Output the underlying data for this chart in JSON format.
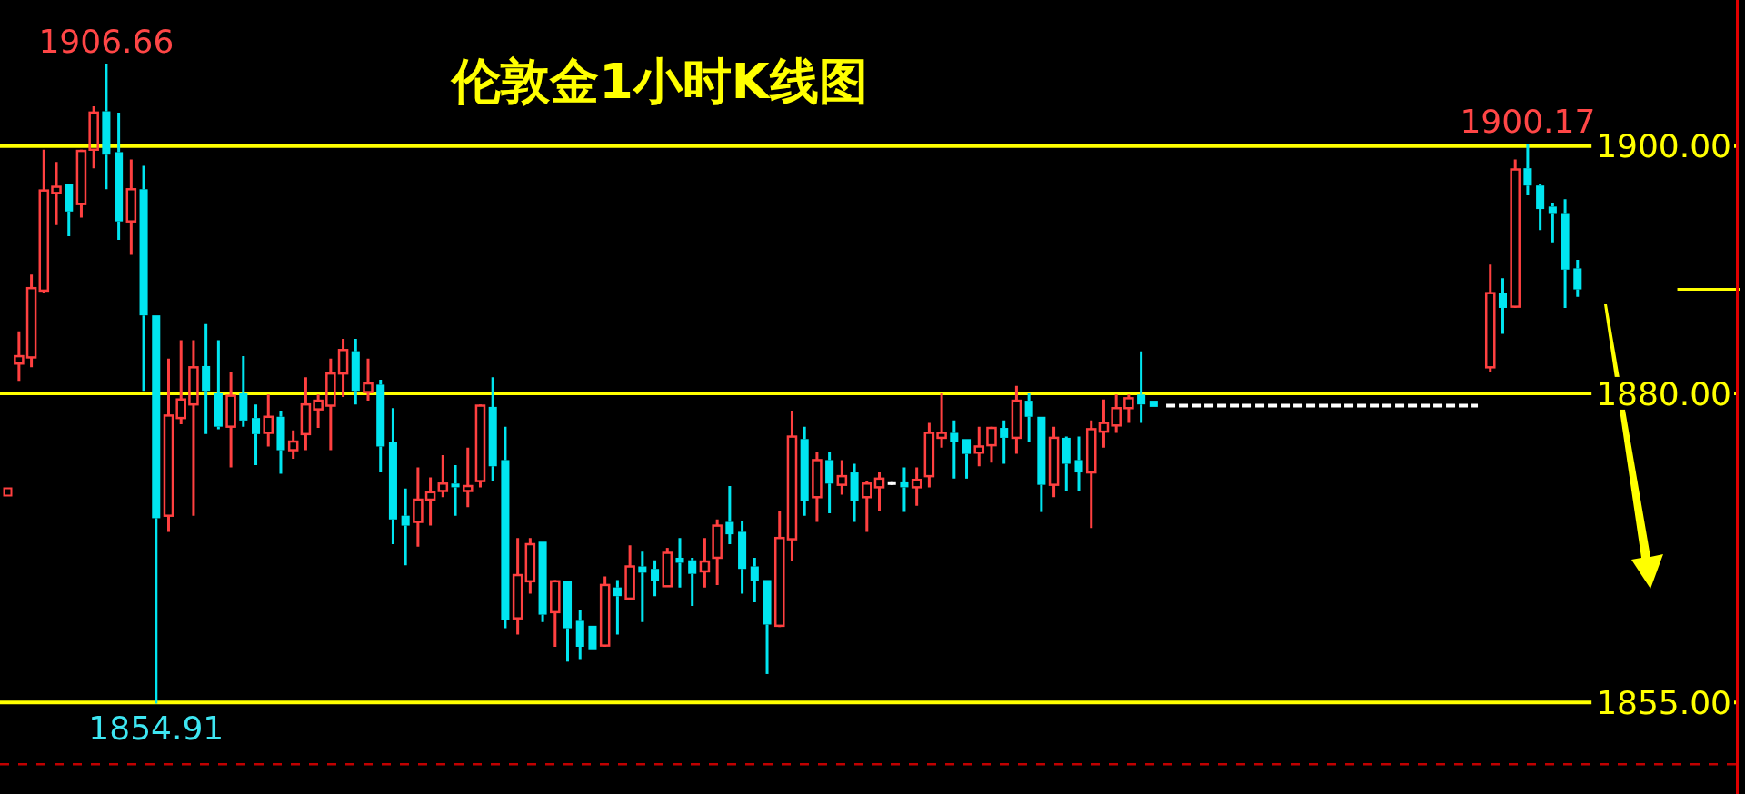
{
  "chart_data": {
    "type": "candlestick",
    "title": "伦敦金1小时K线图",
    "categories": [
      null,
      null,
      null,
      null,
      null,
      null,
      null,
      null,
      null,
      null,
      null,
      null,
      null,
      null,
      null,
      null,
      null,
      null,
      null,
      null,
      null,
      null,
      null,
      null,
      null,
      null,
      null,
      null,
      null,
      null,
      null,
      null,
      null,
      null,
      null,
      null,
      null,
      null,
      null,
      null,
      null,
      null,
      null,
      null,
      null,
      null,
      null,
      null,
      null,
      null,
      null,
      null,
      null,
      null,
      null,
      null,
      null,
      null,
      null,
      null,
      null,
      null,
      null,
      null,
      null,
      null,
      null,
      null,
      null,
      null,
      null,
      null,
      null,
      null,
      null,
      null,
      null,
      null,
      null,
      null,
      null,
      null,
      null,
      null,
      null,
      null,
      null,
      null,
      null,
      null,
      null,
      null,
      null,
      null,
      null,
      null,
      null,
      null,
      null,
      null,
      null,
      null,
      null,
      null,
      null,
      null,
      null,
      null,
      null,
      null,
      null,
      null,
      null,
      null,
      null,
      null,
      null,
      null,
      null,
      null,
      null,
      null,
      null,
      null,
      null,
      null,
      null,
      null,
      null,
      null,
      null,
      null,
      null,
      null,
      null,
      null,
      null,
      null,
      null
    ],
    "ohlc": [
      [
        1882.4,
        1885.0,
        1881.0,
        1883.0
      ],
      [
        1882.9,
        1889.6,
        1882.1,
        1888.5
      ],
      [
        1888.3,
        1899.7,
        1888.1,
        1896.4
      ],
      [
        1896.2,
        1898.7,
        1893.6,
        1896.7
      ],
      [
        1896.9,
        1896.9,
        1892.7,
        1894.7
      ],
      [
        1895.3,
        1899.7,
        1894.2,
        1899.6
      ],
      [
        1899.7,
        1903.2,
        1898.2,
        1902.7
      ],
      [
        1902.8,
        1906.66,
        1896.5,
        1899.3
      ],
      [
        1899.5,
        1902.7,
        1892.4,
        1893.9
      ],
      [
        1893.9,
        1898.9,
        1891.2,
        1896.5
      ],
      [
        1896.5,
        1898.4,
        1880.2,
        1886.3
      ],
      [
        1886.3,
        1886.3,
        1854.91,
        1869.9
      ],
      [
        1870.1,
        1882.8,
        1868.8,
        1878.2
      ],
      [
        1878.0,
        1884.3,
        1877.5,
        1879.5
      ],
      [
        1879.1,
        1884.3,
        1870.1,
        1882.1
      ],
      [
        1882.2,
        1885.6,
        1876.7,
        1880.2
      ],
      [
        1880.0,
        1884.3,
        1877.1,
        1877.3
      ],
      [
        1877.3,
        1881.7,
        1874.0,
        1879.8
      ],
      [
        1880.0,
        1883.0,
        1877.3,
        1877.8
      ],
      [
        1878.0,
        1879.1,
        1874.2,
        1876.7
      ],
      [
        1876.8,
        1879.9,
        1875.7,
        1878.1
      ],
      [
        1878.1,
        1878.6,
        1873.5,
        1875.4
      ],
      [
        1875.4,
        1877.0,
        1874.7,
        1876.1
      ],
      [
        1876.7,
        1881.3,
        1875.4,
        1879.1
      ],
      [
        1878.7,
        1879.9,
        1877.2,
        1879.4
      ],
      [
        1879.0,
        1882.8,
        1875.4,
        1881.6
      ],
      [
        1881.6,
        1884.4,
        1879.7,
        1883.5
      ],
      [
        1883.4,
        1884.4,
        1879.1,
        1880.2
      ],
      [
        1880.1,
        1882.8,
        1879.4,
        1880.8
      ],
      [
        1880.7,
        1881.1,
        1873.6,
        1875.7
      ],
      [
        1876.1,
        1878.8,
        1867.8,
        1869.8
      ],
      [
        1870.1,
        1872.3,
        1866.1,
        1869.3
      ],
      [
        1869.6,
        1874.0,
        1867.6,
        1871.4
      ],
      [
        1871.4,
        1873.2,
        1869.3,
        1872.0
      ],
      [
        1872.1,
        1875.0,
        1871.6,
        1872.7
      ],
      [
        1872.7,
        1874.2,
        1870.1,
        1872.4
      ],
      [
        1872.1,
        1875.6,
        1870.8,
        1872.5
      ],
      [
        1872.9,
        1879.1,
        1872.4,
        1879.0
      ],
      [
        1878.9,
        1881.3,
        1872.9,
        1874.1
      ],
      [
        1874.6,
        1877.3,
        1861.0,
        1861.7
      ],
      [
        1861.8,
        1868.3,
        1860.5,
        1865.3
      ],
      [
        1864.8,
        1868.3,
        1863.8,
        1867.8
      ],
      [
        1868.0,
        1868.0,
        1861.5,
        1862.1
      ],
      [
        1862.3,
        1864.9,
        1859.5,
        1864.8
      ],
      [
        1864.8,
        1864.8,
        1858.3,
        1861.0
      ],
      [
        1861.6,
        1862.5,
        1858.5,
        1859.5
      ],
      [
        1861.2,
        1861.2,
        1859.3,
        1859.3
      ],
      [
        1859.6,
        1865.2,
        1859.5,
        1864.5
      ],
      [
        1864.3,
        1864.9,
        1860.5,
        1863.6
      ],
      [
        1863.4,
        1867.7,
        1863.3,
        1866.0
      ],
      [
        1866.0,
        1867.2,
        1861.5,
        1865.5
      ],
      [
        1865.8,
        1866.5,
        1863.6,
        1864.8
      ],
      [
        1864.4,
        1867.5,
        1864.4,
        1867.1
      ],
      [
        1866.7,
        1868.3,
        1864.3,
        1866.3
      ],
      [
        1866.5,
        1866.7,
        1862.8,
        1865.4
      ],
      [
        1865.6,
        1868.3,
        1864.3,
        1866.4
      ],
      [
        1866.7,
        1869.8,
        1864.5,
        1869.3
      ],
      [
        1869.6,
        1872.5,
        1867.8,
        1868.6
      ],
      [
        1868.8,
        1869.7,
        1863.8,
        1865.8
      ],
      [
        1866.0,
        1866.7,
        1863.1,
        1864.8
      ],
      [
        1864.9,
        1864.9,
        1857.3,
        1861.3
      ],
      [
        1861.2,
        1870.5,
        1861.1,
        1868.3
      ],
      [
        1868.2,
        1878.6,
        1866.4,
        1876.5
      ],
      [
        1876.3,
        1877.3,
        1870.1,
        1871.3
      ],
      [
        1871.6,
        1875.3,
        1869.6,
        1874.6
      ],
      [
        1874.6,
        1875.3,
        1870.3,
        1872.7
      ],
      [
        1872.6,
        1874.6,
        1871.8,
        1873.3
      ],
      [
        1873.6,
        1874.3,
        1869.6,
        1871.3
      ],
      [
        1871.6,
        1872.9,
        1868.8,
        1872.7
      ],
      [
        1872.4,
        1873.6,
        1870.5,
        1873.1
      ],
      [
        1872.7,
        1872.7,
        1872.7,
        1872.7
      ],
      [
        1872.8,
        1874.0,
        1870.4,
        1872.4
      ],
      [
        1872.4,
        1874.0,
        1870.9,
        1873.0
      ],
      [
        1873.3,
        1877.6,
        1872.4,
        1876.8
      ],
      [
        1876.4,
        1880.0,
        1875.6,
        1876.8
      ],
      [
        1876.8,
        1877.8,
        1873.1,
        1876.1
      ],
      [
        1876.3,
        1876.3,
        1873.1,
        1875.1
      ],
      [
        1875.2,
        1877.3,
        1874.1,
        1875.7
      ],
      [
        1875.8,
        1877.3,
        1874.4,
        1877.2
      ],
      [
        1877.2,
        1877.8,
        1874.3,
        1876.4
      ],
      [
        1876.4,
        1880.6,
        1875.1,
        1879.4
      ],
      [
        1879.4,
        1880.0,
        1876.1,
        1878.1
      ],
      [
        1878.1,
        1878.1,
        1870.4,
        1872.6
      ],
      [
        1872.6,
        1877.3,
        1871.6,
        1876.4
      ],
      [
        1876.4,
        1876.5,
        1872.1,
        1874.3
      ],
      [
        1874.6,
        1876.5,
        1872.1,
        1873.6
      ],
      [
        1873.6,
        1877.8,
        1869.1,
        1877.1
      ],
      [
        1876.9,
        1879.5,
        1875.6,
        1877.6
      ],
      [
        1877.4,
        1879.9,
        1876.8,
        1878.8
      ],
      [
        1878.8,
        1879.9,
        1877.6,
        1879.6
      ],
      [
        1879.9,
        1883.4,
        1877.6,
        1879.1
      ],
      [
        1879.4,
        1879.4,
        1878.9,
        1878.9
      ],
      null,
      null,
      null,
      null,
      null,
      null,
      null,
      null,
      null,
      null,
      null,
      null,
      null,
      null,
      null,
      null,
      null,
      null,
      null,
      null,
      null,
      null,
      null,
      null,
      null,
      null,
      [
        1882.1,
        1890.4,
        1881.7,
        1888.1
      ],
      [
        1888.1,
        1889.3,
        1884.8,
        1886.9
      ],
      [
        1887.0,
        1898.9,
        1886.9,
        1898.1
      ],
      [
        1898.2,
        1900.17,
        1896.0,
        1896.8
      ],
      [
        1896.8,
        1896.9,
        1893.2,
        1894.9
      ],
      [
        1895.1,
        1895.4,
        1892.2,
        1894.5
      ],
      [
        1894.5,
        1895.7,
        1886.9,
        1890.0
      ],
      [
        1890.1,
        1890.8,
        1887.8,
        1888.4
      ],
      null,
      null,
      null,
      null,
      null,
      null,
      null,
      null,
      null,
      null,
      null,
      null,
      null
    ],
    "colors": [
      "#ff4040",
      "#ff4040",
      "#ff4040",
      "#ff4040",
      "#00e5f0",
      "#ff4040",
      "#ff4040",
      "#00e5f0",
      "#00e5f0",
      "#ff4040",
      "#00e5f0",
      "#00e5f0",
      "#ff4040",
      "#ff4040",
      "#ff4040",
      "#00e5f0",
      "#00e5f0",
      "#ff4040",
      "#00e5f0",
      "#00e5f0",
      "#ff4040",
      "#00e5f0",
      "#ff4040",
      "#ff4040",
      "#ff4040",
      "#ff4040",
      "#ff4040",
      "#00e5f0",
      "#ff4040",
      "#00e5f0",
      "#00e5f0",
      "#00e5f0",
      "#ff4040",
      "#ff4040",
      "#ff4040",
      "#00e5f0",
      "#ff4040",
      "#ff4040",
      "#00e5f0",
      "#00e5f0",
      "#ff4040",
      "#ff4040",
      "#00e5f0",
      "#ff4040",
      "#00e5f0",
      "#00e5f0",
      "#00e5f0",
      "#ff4040",
      "#00e5f0",
      "#ff4040",
      "#00e5f0",
      "#00e5f0",
      "#ff4040",
      "#00e5f0",
      "#00e5f0",
      "#ff4040",
      "#ff4040",
      "#00e5f0",
      "#00e5f0",
      "#00e5f0",
      "#00e5f0",
      "#ff4040",
      "#ff4040",
      "#00e5f0",
      "#ff4040",
      "#00e5f0",
      "#ff4040",
      "#00e5f0",
      "#ff4040",
      "#ff4040",
      "#ffffff",
      "#00e5f0",
      "#ff4040",
      "#ff4040",
      "#ff4040",
      "#00e5f0",
      "#00e5f0",
      "#ff4040",
      "#ff4040",
      "#00e5f0",
      "#ff4040",
      "#00e5f0",
      "#00e5f0",
      "#ff4040",
      "#00e5f0",
      "#00e5f0",
      "#ff4040",
      "#ff4040",
      "#ff4040",
      "#ff4040",
      "#00e5f0",
      "#00e5f0",
      null,
      null,
      null,
      null,
      null,
      null,
      null,
      null,
      null,
      null,
      null,
      null,
      null,
      null,
      null,
      null,
      null,
      null,
      null,
      null,
      null,
      null,
      null,
      null,
      null,
      null,
      "#ff4040",
      "#00e5f0",
      "#ff4040",
      "#00e5f0",
      "#00e5f0",
      "#00e5f0",
      "#00e5f0",
      "#00e5f0",
      null,
      null,
      null,
      null,
      null,
      null,
      null,
      null,
      null,
      null,
      null,
      null,
      null
    ],
    "series": [
      {
        "type": "line",
        "color": "#ffffff",
        "line_style": "dashed",
        "values": [
          null,
          null,
          null,
          null,
          null,
          null,
          null,
          null,
          null,
          null,
          null,
          null,
          null,
          null,
          null,
          null,
          null,
          null,
          null,
          null,
          null,
          null,
          null,
          null,
          null,
          null,
          null,
          null,
          null,
          null,
          null,
          null,
          null,
          null,
          null,
          null,
          null,
          null,
          null,
          null,
          null,
          null,
          null,
          null,
          null,
          null,
          null,
          null,
          null,
          null,
          null,
          null,
          null,
          null,
          null,
          null,
          null,
          null,
          null,
          null,
          null,
          null,
          null,
          null,
          null,
          null,
          null,
          null,
          null,
          null,
          null,
          null,
          null,
          null,
          null,
          null,
          null,
          null,
          null,
          null,
          null,
          null,
          null,
          null,
          null,
          null,
          null,
          null,
          null,
          null,
          null,
          null,
          1879,
          1879,
          1879,
          1879,
          1879,
          1879,
          1879,
          1879,
          1879,
          1879,
          1879,
          1879,
          1879,
          1879,
          1879,
          1879,
          1879,
          1879,
          1879,
          1879,
          1879,
          1879,
          1879,
          1879,
          1879,
          1879,
          null,
          null,
          null,
          null,
          null,
          null,
          null,
          null,
          null,
          null,
          null,
          null,
          null,
          null,
          null,
          null,
          null,
          null,
          null,
          null,
          null
        ]
      },
      {
        "type": "line",
        "color": "#ffff00",
        "values": [
          null,
          null,
          null,
          null,
          null,
          null,
          null,
          null,
          null,
          null,
          null,
          null,
          null,
          null,
          null,
          null,
          null,
          null,
          null,
          null,
          null,
          null,
          null,
          null,
          null,
          null,
          null,
          null,
          null,
          null,
          null,
          null,
          null,
          null,
          null,
          null,
          null,
          null,
          null,
          null,
          null,
          null,
          null,
          null,
          null,
          null,
          null,
          null,
          null,
          null,
          null,
          null,
          null,
          null,
          null,
          null,
          null,
          null,
          null,
          null,
          null,
          null,
          null,
          null,
          null,
          null,
          null,
          null,
          null,
          null,
          null,
          null,
          null,
          null,
          null,
          null,
          null,
          null,
          null,
          null,
          null,
          null,
          null,
          null,
          null,
          null,
          null,
          null,
          null,
          null,
          null,
          null,
          null,
          null,
          null,
          null,
          null,
          null,
          null,
          null,
          null,
          null,
          null,
          null,
          null,
          null,
          null,
          null,
          null,
          null,
          null,
          null,
          null,
          null,
          null,
          null,
          null,
          null,
          null,
          null,
          null,
          null,
          null,
          null,
          null,
          null,
          null,
          null,
          null,
          null,
          null,
          null,
          null,
          1888.4,
          1888.4,
          1888.4,
          1888.4,
          1888.4,
          1888.4
        ]
      }
    ],
    "ylim": [
      1847.6,
      1911.8
    ],
    "yticks": [
      {
        "value": 1900,
        "label": "1900.00"
      },
      {
        "value": 1880,
        "label": "1880.00"
      },
      {
        "value": 1855,
        "label": "1855.00"
      }
    ],
    "tick_labels": "y",
    "ref_lines": [
      {
        "axis": "y",
        "value": 1900,
        "color": "#ffff00"
      },
      {
        "axis": "y",
        "value": 1880,
        "color": "#ffff00"
      },
      {
        "axis": "y",
        "value": 1855,
        "color": "#ffff00"
      },
      {
        "axis": "y",
        "value": 1850,
        "color": "#c00000",
        "line_style": "dashed"
      }
    ],
    "annotations": [
      {
        "text": "1906.66",
        "y": 1906.66
      },
      {
        "text": "1854.91",
        "y": 1854.91
      },
      {
        "text": "1900.17",
        "y": 1900.17
      }
    ]
  }
}
